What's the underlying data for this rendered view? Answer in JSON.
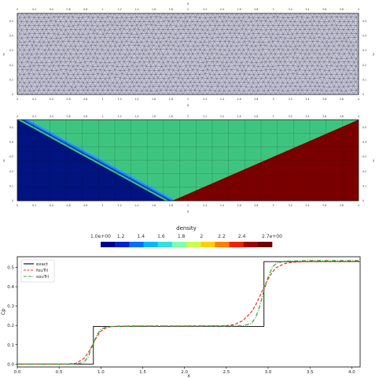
{
  "mesh_panel": {
    "x_ticks": [
      "0",
      "0.2",
      "0.4",
      "0.6",
      "0.8",
      "1",
      "1.2",
      "1.4",
      "1.6",
      "1.8",
      "2",
      "2.2",
      "2.4",
      "2.6",
      "2.8",
      "3",
      "3.2",
      "3.4",
      "3.6",
      "3.8",
      "4"
    ],
    "y_ticks": [
      "0",
      "0.1",
      "0.2",
      "0.3",
      "0.4",
      "0.5"
    ],
    "x_axis_letter": "x",
    "y_axis_letter": "y",
    "fill_color": "#c7c6d6",
    "edge_color": "#2f3550"
  },
  "density_panel": {
    "x_ticks": [
      "0",
      "0.2",
      "0.4",
      "0.6",
      "0.8",
      "1",
      "1.2",
      "1.4",
      "1.6",
      "1.8",
      "2",
      "2.2",
      "2.4",
      "2.6",
      "2.8",
      "3",
      "3.2",
      "3.4",
      "3.6",
      "3.8",
      "4"
    ],
    "y_ticks": [
      "0",
      "0.1",
      "0.2",
      "0.3",
      "0.4",
      "0.5"
    ],
    "x_axis_letter": "x",
    "y_axis_letter": "y",
    "colors": {
      "low": "#00137f",
      "mid": "#3ec47f",
      "high": "#7a0000"
    }
  },
  "colorbar": {
    "title": "density",
    "tick_labels": [
      "1.0e+00",
      "1.2",
      "1.4",
      "1.6",
      "1.8",
      "2",
      "2.2",
      "2.4",
      "2.7e+00"
    ],
    "range": [
      1.0,
      2.7
    ],
    "colors": [
      "#00008f",
      "#0020d0",
      "#0070ff",
      "#00b8ff",
      "#30e0e0",
      "#7fffaf",
      "#c8ff50",
      "#ffd000",
      "#ff8000",
      "#f02000",
      "#a00000",
      "#700000"
    ]
  },
  "chart_data": {
    "type": "line",
    "xlabel": "x",
    "ylabel": "Cp",
    "xlim": [
      0,
      4.1
    ],
    "ylim": [
      -0.015,
      0.555
    ],
    "x_ticks": [
      "0.0",
      "0.5",
      "1.0",
      "1.5",
      "2.0",
      "2.5",
      "3.0",
      "3.5",
      "4.0"
    ],
    "y_ticks": [
      "0.0",
      "0.1",
      "0.2",
      "0.3",
      "0.4",
      "0.5"
    ],
    "grid": false,
    "legend": "top-left",
    "series": [
      {
        "name": "exact",
        "color": "#000000",
        "dash": "solid",
        "x": [
          0.0,
          0.91,
          0.91,
          2.95,
          2.95,
          4.1
        ],
        "y": [
          0.0,
          0.0,
          0.195,
          0.195,
          0.53,
          0.53
        ]
      },
      {
        "name": "fouTri",
        "color": "#e8352a",
        "dash": "dashed",
        "x": [
          0.0,
          0.6,
          0.7,
          0.8,
          0.85,
          0.9,
          0.95,
          1.0,
          1.05,
          1.1,
          1.2,
          1.4,
          2.0,
          2.5,
          2.6,
          2.7,
          2.8,
          2.85,
          2.9,
          2.95,
          3.0,
          3.05,
          3.1,
          3.2,
          3.3,
          3.5,
          4.1
        ],
        "y": [
          0.0,
          0.0,
          0.004,
          0.03,
          0.06,
          0.1,
          0.14,
          0.17,
          0.185,
          0.192,
          0.196,
          0.197,
          0.197,
          0.198,
          0.205,
          0.225,
          0.27,
          0.305,
          0.35,
          0.4,
          0.44,
          0.475,
          0.5,
          0.52,
          0.527,
          0.53,
          0.53
        ]
      },
      {
        "name": "souTri",
        "color": "#2ca02c",
        "dash": "dashdot",
        "x": [
          0.0,
          0.7,
          0.8,
          0.85,
          0.9,
          0.95,
          1.0,
          1.05,
          1.1,
          1.2,
          1.5,
          2.0,
          2.5,
          2.7,
          2.8,
          2.85,
          2.9,
          2.95,
          3.0,
          3.05,
          3.1,
          3.2,
          3.5,
          4.1
        ],
        "y": [
          0.0,
          0.0,
          0.01,
          0.04,
          0.095,
          0.15,
          0.18,
          0.19,
          0.194,
          0.196,
          0.197,
          0.197,
          0.197,
          0.198,
          0.21,
          0.24,
          0.3,
          0.38,
          0.45,
          0.5,
          0.522,
          0.532,
          0.535,
          0.535
        ]
      }
    ]
  }
}
